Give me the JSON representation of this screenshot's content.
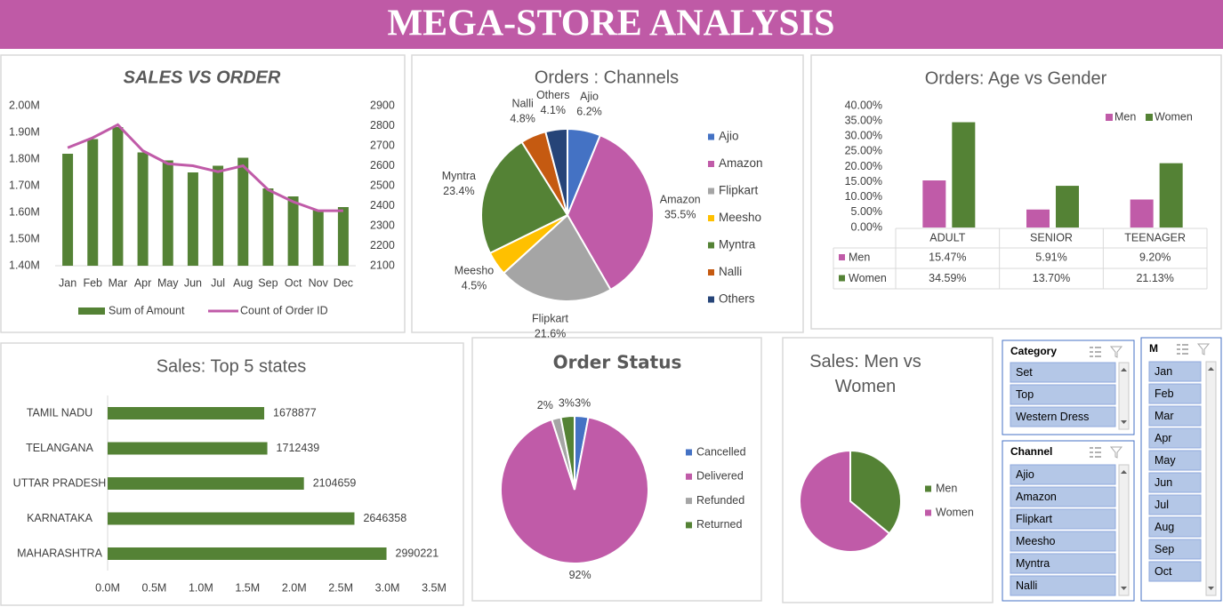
{
  "header": {
    "title": "MEGA-STORE ANALYSIS"
  },
  "chart_data": [
    {
      "type": "combo",
      "title": "SALES VS ORDER",
      "categories": [
        "Jan",
        "Feb",
        "Mar",
        "Apr",
        "May",
        "Jun",
        "Jul",
        "Aug",
        "Sep",
        "Oct",
        "Nov",
        "Dec"
      ],
      "series": [
        {
          "name": "Sum of Amount",
          "type": "bar",
          "color": "#548235",
          "values": [
            1820000,
            1875000,
            1920000,
            1825000,
            1795000,
            1750000,
            1775000,
            1805000,
            1690000,
            1660000,
            1610000,
            1620000
          ]
        },
        {
          "name": "Count of Order ID",
          "type": "line",
          "axis": "y2",
          "color": "#c05ba8",
          "values": [
            2690,
            2740,
            2805,
            2675,
            2610,
            2600,
            2570,
            2600,
            2480,
            2420,
            2375,
            2375
          ]
        }
      ],
      "ylim": [
        1400000,
        2000000
      ],
      "yticks": [
        {
          "value": 1400000,
          "label": "1.40M"
        },
        {
          "value": 1500000,
          "label": "1.50M"
        },
        {
          "value": 1600000,
          "label": "1.60M"
        },
        {
          "value": 1700000,
          "label": "1.70M"
        },
        {
          "value": 1800000,
          "label": "1.80M"
        },
        {
          "value": 1900000,
          "label": "1.90M"
        },
        {
          "value": 2000000,
          "label": "2.00M"
        }
      ],
      "y2lim": [
        2100,
        2900
      ],
      "y2ticks": [
        2100,
        2200,
        2300,
        2400,
        2500,
        2600,
        2700,
        2800,
        2900
      ]
    },
    {
      "type": "pie",
      "title": "Orders : Channels",
      "categories": [
        "Ajio",
        "Amazon",
        "Flipkart",
        "Meesho",
        "Myntra",
        "Nalli",
        "Others"
      ],
      "values": [
        6.2,
        35.5,
        21.6,
        4.5,
        23.4,
        4.8,
        4.1
      ],
      "value_labels": [
        "6.2%",
        "35.5%",
        "21.6%",
        "4.5%",
        "23.4%",
        "4.8%",
        "4.1%"
      ],
      "colors": [
        "#4472c4",
        "#c05ba8",
        "#a5a5a5",
        "#ffc000",
        "#548235",
        "#c55a11",
        "#264478"
      ]
    },
    {
      "type": "bar",
      "title": "Orders: Age vs Gender",
      "categories": [
        "ADULT",
        "SENIOR",
        "TEENAGER"
      ],
      "series": [
        {
          "name": "Men",
          "color": "#c05ba8",
          "values": [
            15.47,
            5.91,
            9.2
          ],
          "value_labels": [
            "15.47%",
            "5.91%",
            "9.20%"
          ]
        },
        {
          "name": "Women",
          "color": "#548235",
          "values": [
            34.59,
            13.7,
            21.13
          ],
          "value_labels": [
            "34.59%",
            "13.70%",
            "21.13%"
          ]
        }
      ],
      "ylim": [
        0,
        40
      ],
      "yticks": [
        {
          "value": 0,
          "label": "0.00%"
        },
        {
          "value": 5,
          "label": "5.00%"
        },
        {
          "value": 10,
          "label": "10.00%"
        },
        {
          "value": 15,
          "label": "15.00%"
        },
        {
          "value": 20,
          "label": "20.00%"
        },
        {
          "value": 25,
          "label": "25.00%"
        },
        {
          "value": 30,
          "label": "30.00%"
        },
        {
          "value": 35,
          "label": "35.00%"
        },
        {
          "value": 40,
          "label": "40.00%"
        }
      ],
      "legend": "top-right"
    },
    {
      "type": "barh",
      "title": "Sales: Top 5 states",
      "categories": [
        "TAMIL NADU",
        "TELANGANA",
        "UTTAR PRADESH",
        "KARNATAKA",
        "MAHARASHTRA"
      ],
      "values": [
        1678877,
        1712439,
        2104659,
        2646358,
        2990221
      ],
      "color": "#548235",
      "xlim": [
        0,
        3500000
      ],
      "xticks": [
        {
          "value": 0,
          "label": "0.0M"
        },
        {
          "value": 500000,
          "label": "0.5M"
        },
        {
          "value": 1000000,
          "label": "1.0M"
        },
        {
          "value": 1500000,
          "label": "1.5M"
        },
        {
          "value": 2000000,
          "label": "2.0M"
        },
        {
          "value": 2500000,
          "label": "2.5M"
        },
        {
          "value": 3000000,
          "label": "3.0M"
        },
        {
          "value": 3500000,
          "label": "3.5M"
        }
      ]
    },
    {
      "type": "pie",
      "title": "Order Status",
      "categories": [
        "Cancelled",
        "Delivered",
        "Refunded",
        "Returned"
      ],
      "values": [
        3,
        92,
        2,
        3
      ],
      "value_labels": [
        "3%",
        "92%",
        "2%",
        "3%"
      ],
      "colors": [
        "#4472c4",
        "#c05ba8",
        "#a5a5a5",
        "#548235"
      ]
    },
    {
      "type": "pie",
      "title": "Sales: Men vs Women",
      "categories": [
        "Men",
        "Women"
      ],
      "values": [
        36,
        64
      ],
      "colors": [
        "#548235",
        "#c05ba8"
      ]
    }
  ],
  "slicers": [
    {
      "title": "Category",
      "items": [
        "Set",
        "Top",
        "Western Dress"
      ]
    },
    {
      "title": "Channel",
      "items": [
        "Ajio",
        "Amazon",
        "Flipkart",
        "Meesho",
        "Myntra",
        "Nalli"
      ]
    },
    {
      "title": "M",
      "items": [
        "Jan",
        "Feb",
        "Mar",
        "Apr",
        "May",
        "Jun",
        "Jul",
        "Aug",
        "Sep",
        "Oct"
      ]
    }
  ]
}
